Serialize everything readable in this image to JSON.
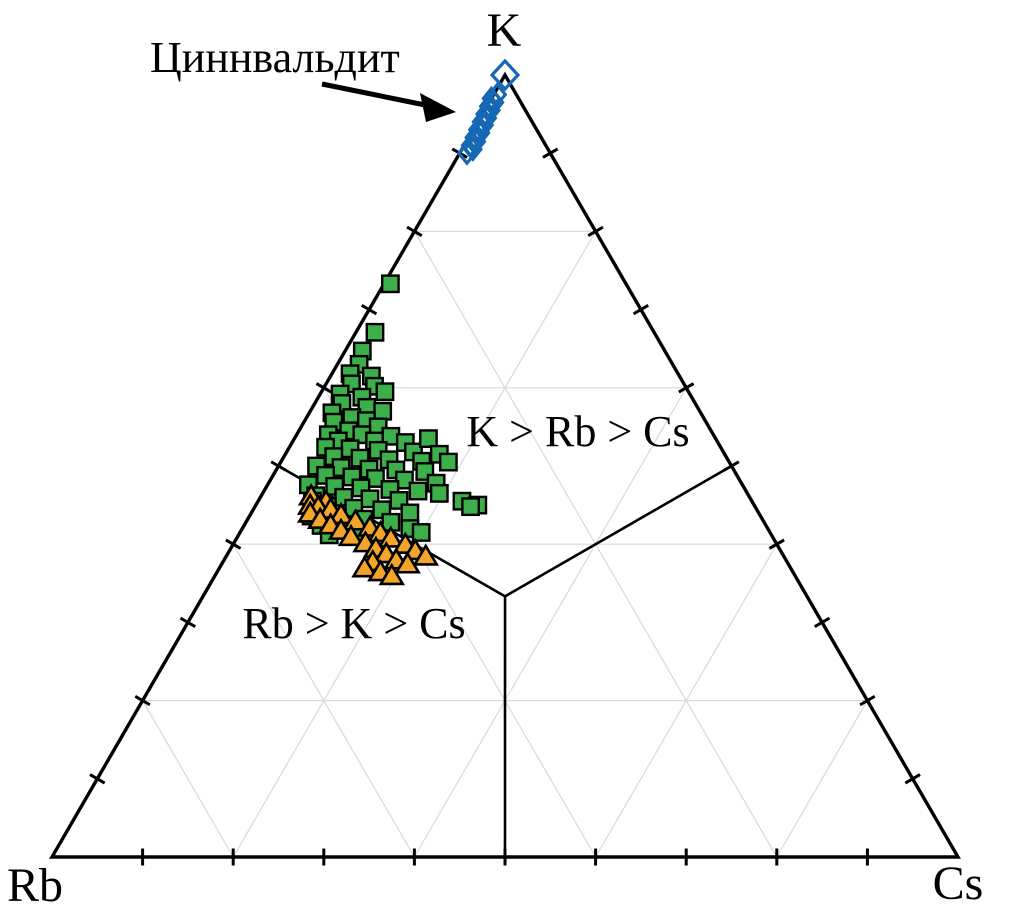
{
  "chart_data": {
    "type": "scatter",
    "subtype": "ternary",
    "title": "",
    "axes": {
      "top_vertex": "K",
      "bottom_left_vertex": "Rb",
      "bottom_right_vertex": "Cs"
    },
    "tick_interval": 0.1,
    "grid_levels": [
      0.2,
      0.4,
      0.6,
      0.8
    ],
    "grid_color": "#d9d9d9",
    "edge_color": "#000000",
    "region_labels": [
      {
        "text": "K > Rb > Cs"
      },
      {
        "text": "Rb > K > Cs"
      }
    ],
    "annotation": {
      "text": "Циннвальдит",
      "target_series": "Циннвальдит"
    },
    "boundaries": [
      {
        "name": "K=Rb",
        "from": [
          0.3333,
          0.3333,
          0.3334
        ],
        "to": [
          0.5,
          0.5,
          0.0
        ]
      },
      {
        "name": "K=Cs",
        "from": [
          0.3333,
          0.3333,
          0.3334
        ],
        "to": [
          0.5,
          0.0,
          0.5
        ]
      },
      {
        "name": "Rb=Cs",
        "from": [
          0.3333,
          0.3333,
          0.3334
        ],
        "to": [
          0.0,
          0.5,
          0.5
        ]
      }
    ],
    "series": [
      {
        "name": "squares-green",
        "marker": "square",
        "color": "#3cae4a",
        "outline": "#000000",
        "points_K_Rb_Cs": [
          [
            0.733,
            0.26,
            0.007
          ],
          [
            0.671,
            0.308,
            0.021
          ],
          [
            0.647,
            0.334,
            0.019
          ],
          [
            0.63,
            0.346,
            0.024
          ],
          [
            0.618,
            0.362,
            0.02
          ],
          [
            0.605,
            0.367,
            0.028
          ],
          [
            0.592,
            0.386,
            0.022
          ],
          [
            0.58,
            0.39,
            0.03
          ],
          [
            0.568,
            0.407,
            0.025
          ],
          [
            0.556,
            0.411,
            0.033
          ],
          [
            0.615,
            0.34,
            0.045
          ],
          [
            0.602,
            0.343,
            0.055
          ],
          [
            0.595,
            0.335,
            0.07
          ],
          [
            0.588,
            0.364,
            0.048
          ],
          [
            0.575,
            0.365,
            0.06
          ],
          [
            0.57,
            0.35,
            0.08
          ],
          [
            0.562,
            0.388,
            0.05
          ],
          [
            0.558,
            0.374,
            0.068
          ],
          [
            0.55,
            0.365,
            0.085
          ],
          [
            0.545,
            0.4,
            0.055
          ],
          [
            0.54,
            0.425,
            0.035
          ],
          [
            0.54,
            0.388,
            0.072
          ],
          [
            0.538,
            0.357,
            0.105
          ],
          [
            0.532,
            0.418,
            0.05
          ],
          [
            0.532,
            0.378,
            0.09
          ],
          [
            0.53,
            0.345,
            0.125
          ],
          [
            0.524,
            0.436,
            0.04
          ],
          [
            0.522,
            0.41,
            0.068
          ],
          [
            0.52,
            0.38,
            0.1
          ],
          [
            0.518,
            0.342,
            0.14
          ],
          [
            0.512,
            0.433,
            0.055
          ],
          [
            0.51,
            0.405,
            0.085
          ],
          [
            0.508,
            0.374,
            0.118
          ],
          [
            0.506,
            0.339,
            0.155
          ],
          [
            0.5,
            0.458,
            0.042
          ],
          [
            0.498,
            0.432,
            0.07
          ],
          [
            0.496,
            0.402,
            0.102
          ],
          [
            0.495,
            0.373,
            0.132
          ],
          [
            0.493,
            0.342,
            0.165
          ],
          [
            0.488,
            0.454,
            0.058
          ],
          [
            0.486,
            0.426,
            0.088
          ],
          [
            0.484,
            0.401,
            0.115
          ],
          [
            0.482,
            0.37,
            0.148
          ],
          [
            0.476,
            0.479,
            0.045
          ],
          [
            0.474,
            0.451,
            0.075
          ],
          [
            0.472,
            0.423,
            0.105
          ],
          [
            0.47,
            0.392,
            0.138
          ],
          [
            0.468,
            0.362,
            0.17
          ],
          [
            0.462,
            0.478,
            0.06
          ],
          [
            0.46,
            0.448,
            0.092
          ],
          [
            0.458,
            0.42,
            0.122
          ],
          [
            0.456,
            0.389,
            0.155
          ],
          [
            0.455,
            0.485,
            0.06
          ],
          [
            0.448,
            0.472,
            0.08
          ],
          [
            0.446,
            0.444,
            0.11
          ],
          [
            0.444,
            0.414,
            0.142
          ],
          [
            0.436,
            0.496,
            0.068
          ],
          [
            0.434,
            0.468,
            0.098
          ],
          [
            0.432,
            0.44,
            0.128
          ],
          [
            0.424,
            0.491,
            0.085
          ],
          [
            0.422,
            0.463,
            0.115
          ],
          [
            0.412,
            0.488,
            0.1
          ],
          [
            0.41,
            0.46,
            0.13
          ],
          [
            0.428,
            0.412,
            0.16
          ],
          [
            0.44,
            0.385,
            0.175
          ],
          [
            0.42,
            0.395,
            0.185
          ],
          [
            0.415,
            0.385,
            0.2
          ],
          [
            0.535,
            0.317,
            0.148
          ],
          [
            0.515,
            0.315,
            0.17
          ],
          [
            0.505,
            0.31,
            0.185
          ],
          [
            0.478,
            0.337,
            0.185
          ],
          [
            0.465,
            0.34,
            0.195
          ],
          [
            0.455,
            0.32,
            0.225
          ],
          [
            0.45,
            0.305,
            0.245
          ],
          [
            0.448,
            0.314,
            0.238
          ]
        ]
      },
      {
        "name": "triangles-orange",
        "marker": "triangle",
        "color": "#f2a52a",
        "outline": "#000000",
        "points_K_Rb_Cs": [
          [
            0.462,
            0.483,
            0.055
          ],
          [
            0.455,
            0.47,
            0.075
          ],
          [
            0.45,
            0.49,
            0.06
          ],
          [
            0.448,
            0.482,
            0.07
          ],
          [
            0.445,
            0.47,
            0.085
          ],
          [
            0.44,
            0.495,
            0.065
          ],
          [
            0.438,
            0.462,
            0.1
          ],
          [
            0.432,
            0.488,
            0.08
          ],
          [
            0.43,
            0.45,
            0.12
          ],
          [
            0.425,
            0.48,
            0.095
          ],
          [
            0.422,
            0.438,
            0.14
          ],
          [
            0.418,
            0.472,
            0.11
          ],
          [
            0.415,
            0.43,
            0.155
          ],
          [
            0.41,
            0.465,
            0.125
          ],
          [
            0.408,
            0.422,
            0.17
          ],
          [
            0.402,
            0.453,
            0.145
          ],
          [
            0.4,
            0.41,
            0.19
          ],
          [
            0.395,
            0.445,
            0.16
          ],
          [
            0.392,
            0.403,
            0.205
          ],
          [
            0.388,
            0.437,
            0.175
          ],
          [
            0.385,
            0.395,
            0.22
          ],
          [
            0.38,
            0.43,
            0.19
          ],
          [
            0.378,
            0.457,
            0.165
          ],
          [
            0.375,
            0.42,
            0.205
          ],
          [
            0.37,
            0.47,
            0.16
          ],
          [
            0.365,
            0.455,
            0.18
          ],
          [
            0.36,
            0.445,
            0.195
          ]
        ]
      },
      {
        "name": "Циннвальдит",
        "marker": "diamond",
        "color": "#1668b5",
        "outline": "#1668b5",
        "fill": "none",
        "apex_marker_larger": true,
        "points_K_Rb_Cs": [
          [
            1.0,
            0.0,
            0.0
          ],
          [
            0.975,
            0.021,
            0.004
          ],
          [
            0.97,
            0.03,
            0.0
          ],
          [
            0.965,
            0.029,
            0.006
          ],
          [
            0.96,
            0.038,
            0.002
          ],
          [
            0.955,
            0.038,
            0.007
          ],
          [
            0.95,
            0.047,
            0.003
          ],
          [
            0.945,
            0.047,
            0.008
          ],
          [
            0.94,
            0.056,
            0.004
          ],
          [
            0.936,
            0.055,
            0.009
          ],
          [
            0.93,
            0.065,
            0.005
          ],
          [
            0.926,
            0.064,
            0.01
          ],
          [
            0.92,
            0.074,
            0.006
          ],
          [
            0.915,
            0.074,
            0.011
          ],
          [
            0.91,
            0.083,
            0.007
          ],
          [
            0.905,
            0.083,
            0.012
          ],
          [
            0.9,
            0.092,
            0.008
          ]
        ]
      }
    ]
  }
}
